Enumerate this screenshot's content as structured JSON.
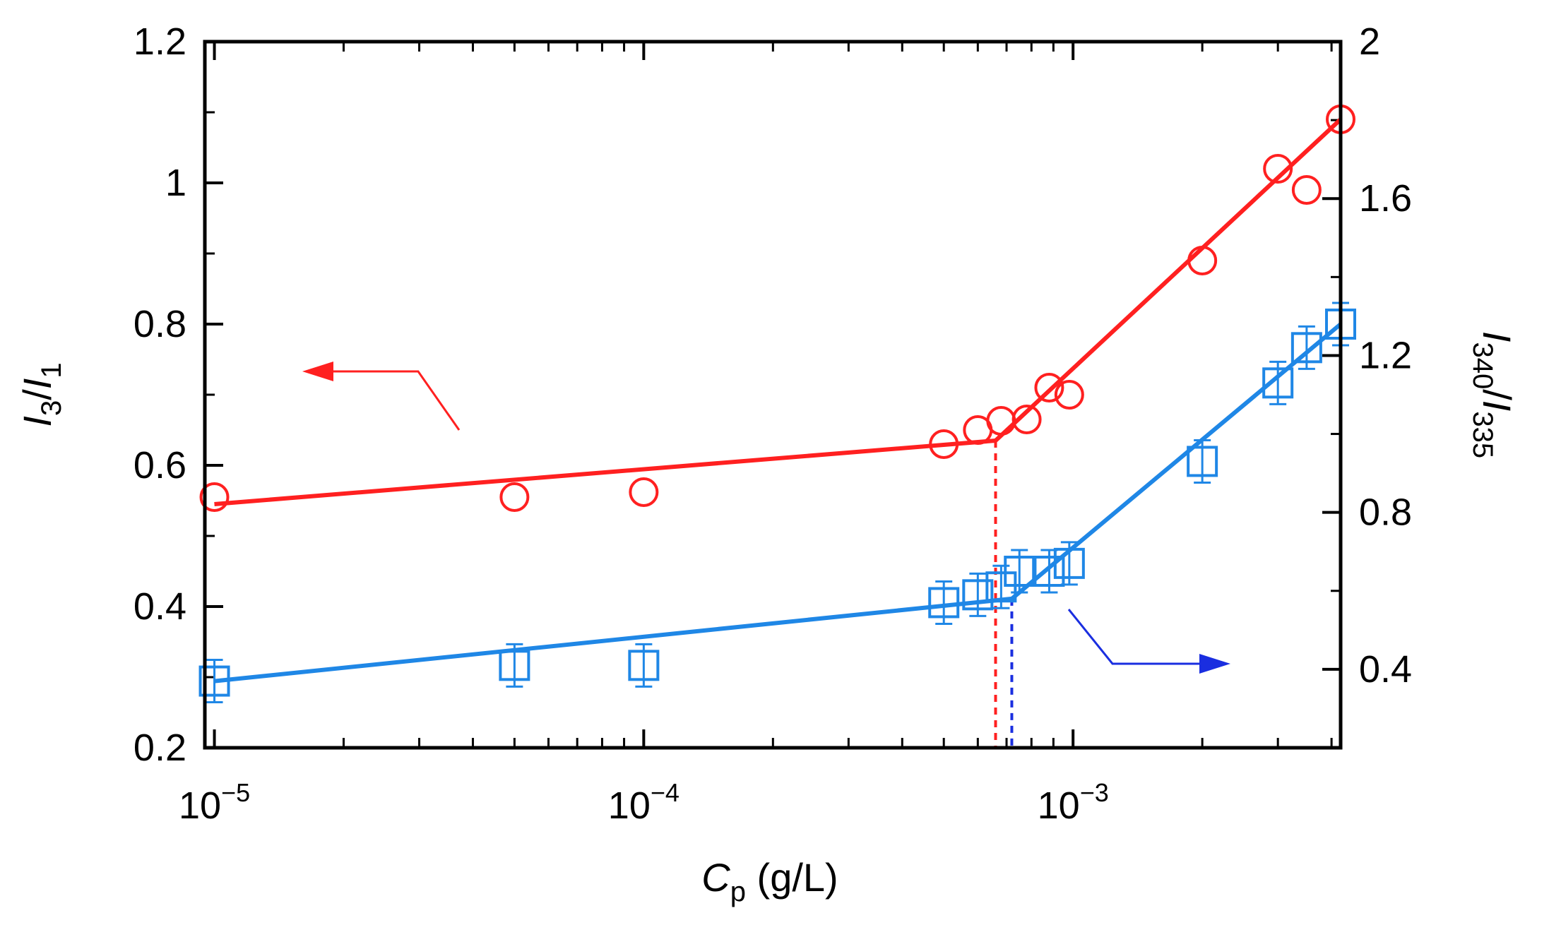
{
  "chart_data": {
    "type": "scatter",
    "title": "",
    "x_axis": {
      "label_main": "C",
      "label_sub": "p",
      "label_unit": " (g/L)",
      "scale": "log",
      "range": [
        9.5e-06,
        0.0042
      ],
      "tick_labels": [
        {
          "value": 1e-05,
          "base": "10",
          "exp": "−5"
        },
        {
          "value": 0.0001,
          "base": "10",
          "exp": "−4"
        },
        {
          "value": 0.001,
          "base": "10",
          "exp": "−3"
        }
      ]
    },
    "y_left": {
      "label_main_1": "I",
      "label_sub_1": "3",
      "label_slash": "/",
      "label_main_2": "I",
      "label_sub_2": "1",
      "range": [
        0.2,
        1.2
      ],
      "ticks": [
        0.2,
        0.4,
        0.6,
        0.8,
        1.0,
        1.2
      ],
      "tick_labels": [
        "0.2",
        "0.4",
        "0.6",
        "0.8",
        "1",
        "1.2"
      ]
    },
    "y_right": {
      "label_main_1": "I",
      "label_sub_1": "340",
      "label_slash": "/",
      "label_main_2": "I",
      "label_sub_2": "335",
      "range": [
        0.2,
        2.0
      ],
      "ticks": [
        0.4,
        0.8,
        1.2,
        1.6,
        2.0
      ],
      "tick_labels": [
        "0.4",
        "0.8",
        "1.2",
        "1.6",
        "2"
      ]
    },
    "series": [
      {
        "name": "I3/I1",
        "axis": "left",
        "marker": "circle",
        "color": "#ff2020",
        "x": [
          1e-05,
          5e-05,
          0.0001,
          0.0005,
          0.0006,
          0.00068,
          0.00078,
          0.00088,
          0.00098,
          0.002,
          0.003,
          0.0035,
          0.0042
        ],
        "y": [
          0.555,
          0.555,
          0.562,
          0.63,
          0.65,
          0.663,
          0.665,
          0.71,
          0.7,
          0.89,
          1.02,
          0.99,
          1.09
        ],
        "fit": [
          [
            1e-05,
            0.545
          ],
          [
            0.00066,
            0.635
          ],
          [
            0.0042,
            1.09
          ]
        ]
      },
      {
        "name": "I340/I335",
        "axis": "right",
        "marker": "square",
        "color": "#1f87e6",
        "x": [
          1e-05,
          5e-05,
          0.0001,
          0.0005,
          0.0006,
          0.00068,
          0.00075,
          0.00088,
          0.00098,
          0.002,
          0.003,
          0.0035,
          0.0042
        ],
        "y": [
          0.37,
          0.41,
          0.41,
          0.57,
          0.59,
          0.61,
          0.65,
          0.65,
          0.67,
          0.93,
          1.13,
          1.22,
          1.28
        ],
        "fit": [
          [
            1e-05,
            0.37
          ],
          [
            0.00072,
            0.58
          ],
          [
            0.0042,
            1.28
          ]
        ]
      }
    ],
    "breakpoints": [
      {
        "x": 0.00066,
        "color": "#ff2020"
      },
      {
        "x": 0.00072,
        "color": "#1a2ee0"
      }
    ],
    "annotations": [
      {
        "type": "arrow",
        "direction": "left",
        "meaning": "left-axis series",
        "color": "#ff2020"
      },
      {
        "type": "arrow",
        "direction": "right",
        "meaning": "right-axis series",
        "color": "#1a2ee0"
      }
    ]
  }
}
